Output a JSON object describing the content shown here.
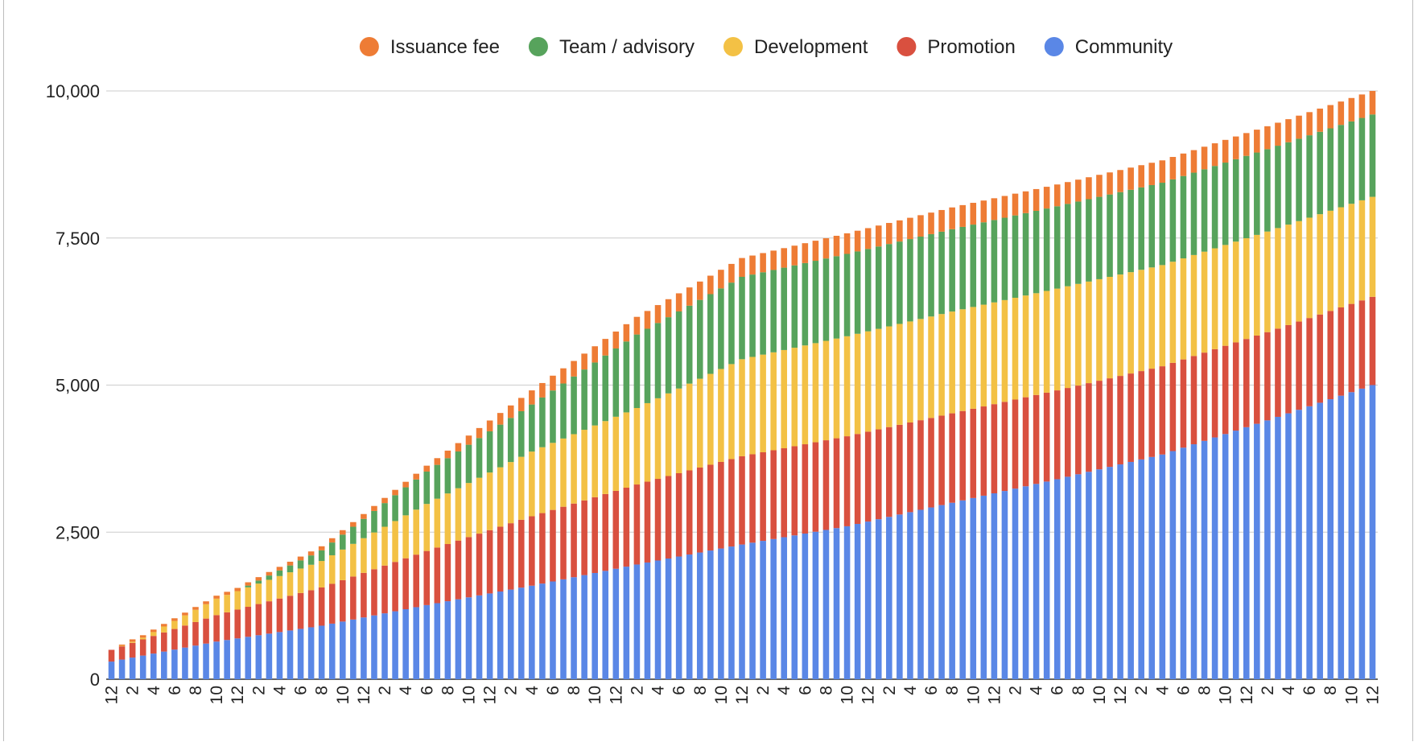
{
  "chart_data": {
    "type": "bar",
    "stacked": true,
    "title": "",
    "xlabel": "",
    "ylabel": "",
    "ylim": [
      0,
      10000
    ],
    "y_ticks": [
      {
        "value": 0,
        "label": "0"
      },
      {
        "value": 2500,
        "label": "2,500"
      },
      {
        "value": 5000,
        "label": "5,000"
      },
      {
        "value": 7500,
        "label": "7,500"
      },
      {
        "value": 10000,
        "label": "10,000"
      }
    ],
    "grid": true,
    "legend_position": "top",
    "bar_count": 121,
    "categories": [
      "12",
      "1",
      "2",
      "3",
      "4",
      "5",
      "6",
      "7",
      "8",
      "9",
      "10",
      "11",
      "12",
      "1",
      "2",
      "3",
      "4",
      "5",
      "6",
      "7",
      "8",
      "9",
      "10",
      "11",
      "12",
      "1",
      "2",
      "3",
      "4",
      "5",
      "6",
      "7",
      "8",
      "9",
      "10",
      "11",
      "12",
      "1",
      "2",
      "3",
      "4",
      "5",
      "6",
      "7",
      "8",
      "9",
      "10",
      "11",
      "12",
      "1",
      "2",
      "3",
      "4",
      "5",
      "6",
      "7",
      "8",
      "9",
      "10",
      "11",
      "12",
      "1",
      "2",
      "3",
      "4",
      "5",
      "6",
      "7",
      "8",
      "9",
      "10",
      "11",
      "12",
      "1",
      "2",
      "3",
      "4",
      "5",
      "6",
      "7",
      "8",
      "9",
      "10",
      "11",
      "12",
      "1",
      "2",
      "3",
      "4",
      "5",
      "6",
      "7",
      "8",
      "9",
      "10",
      "11",
      "12",
      "1",
      "2",
      "3",
      "4",
      "5",
      "6",
      "7",
      "8",
      "9",
      "10",
      "11",
      "12",
      "1",
      "2",
      "3",
      "4",
      "5",
      "6",
      "7",
      "8",
      "9",
      "10",
      "11",
      "12"
    ],
    "series": [
      {
        "name": "Community",
        "color": "#5a87e6",
        "knots": [
          [
            0,
            300
          ],
          [
            10,
            640
          ],
          [
            20,
            910
          ],
          [
            30,
            1260
          ],
          [
            40,
            1590
          ],
          [
            50,
            1950
          ],
          [
            60,
            2290
          ],
          [
            70,
            2600
          ],
          [
            80,
            3000
          ],
          [
            90,
            3400
          ],
          [
            100,
            3820
          ],
          [
            110,
            4400
          ],
          [
            120,
            5000
          ]
        ]
      },
      {
        "name": "Promotion",
        "color": "#d9503f",
        "knots": [
          [
            0,
            200
          ],
          [
            10,
            450
          ],
          [
            20,
            650
          ],
          [
            30,
            920
          ],
          [
            40,
            1180
          ],
          [
            50,
            1360
          ],
          [
            60,
            1500
          ],
          [
            70,
            1530
          ],
          [
            80,
            1520
          ],
          [
            90,
            1510
          ],
          [
            100,
            1500
          ],
          [
            110,
            1500
          ],
          [
            120,
            1500
          ]
        ]
      },
      {
        "name": "Development",
        "color": "#f3c145",
        "knots": [
          [
            0,
            0
          ],
          [
            3,
            30
          ],
          [
            10,
            280
          ],
          [
            20,
            450
          ],
          [
            30,
            800
          ],
          [
            40,
            1100
          ],
          [
            50,
            1300
          ],
          [
            60,
            1650
          ],
          [
            70,
            1700
          ],
          [
            80,
            1730
          ],
          [
            90,
            1730
          ],
          [
            100,
            1720
          ],
          [
            110,
            1710
          ],
          [
            120,
            1700
          ]
        ]
      },
      {
        "name": "Team / advisory",
        "color": "#57a35c",
        "knots": [
          [
            0,
            0
          ],
          [
            12,
            0
          ],
          [
            13,
            30
          ],
          [
            20,
            180
          ],
          [
            30,
            550
          ],
          [
            40,
            800
          ],
          [
            50,
            1250
          ],
          [
            60,
            1400
          ],
          [
            70,
            1400
          ],
          [
            80,
            1400
          ],
          [
            90,
            1400
          ],
          [
            100,
            1400
          ],
          [
            110,
            1400
          ],
          [
            120,
            1400
          ]
        ]
      },
      {
        "name": "Issuance fee",
        "color": "#ee7c35",
        "knots": [
          [
            0,
            0
          ],
          [
            2,
            40
          ],
          [
            10,
            50
          ],
          [
            20,
            70
          ],
          [
            30,
            100
          ],
          [
            40,
            240
          ],
          [
            50,
            300
          ],
          [
            60,
            320
          ],
          [
            70,
            350
          ],
          [
            80,
            370
          ],
          [
            90,
            370
          ],
          [
            100,
            380
          ],
          [
            110,
            390
          ],
          [
            120,
            400
          ]
        ]
      }
    ],
    "legend_order": [
      "Issuance fee",
      "Team / advisory",
      "Development",
      "Promotion",
      "Community"
    ]
  }
}
